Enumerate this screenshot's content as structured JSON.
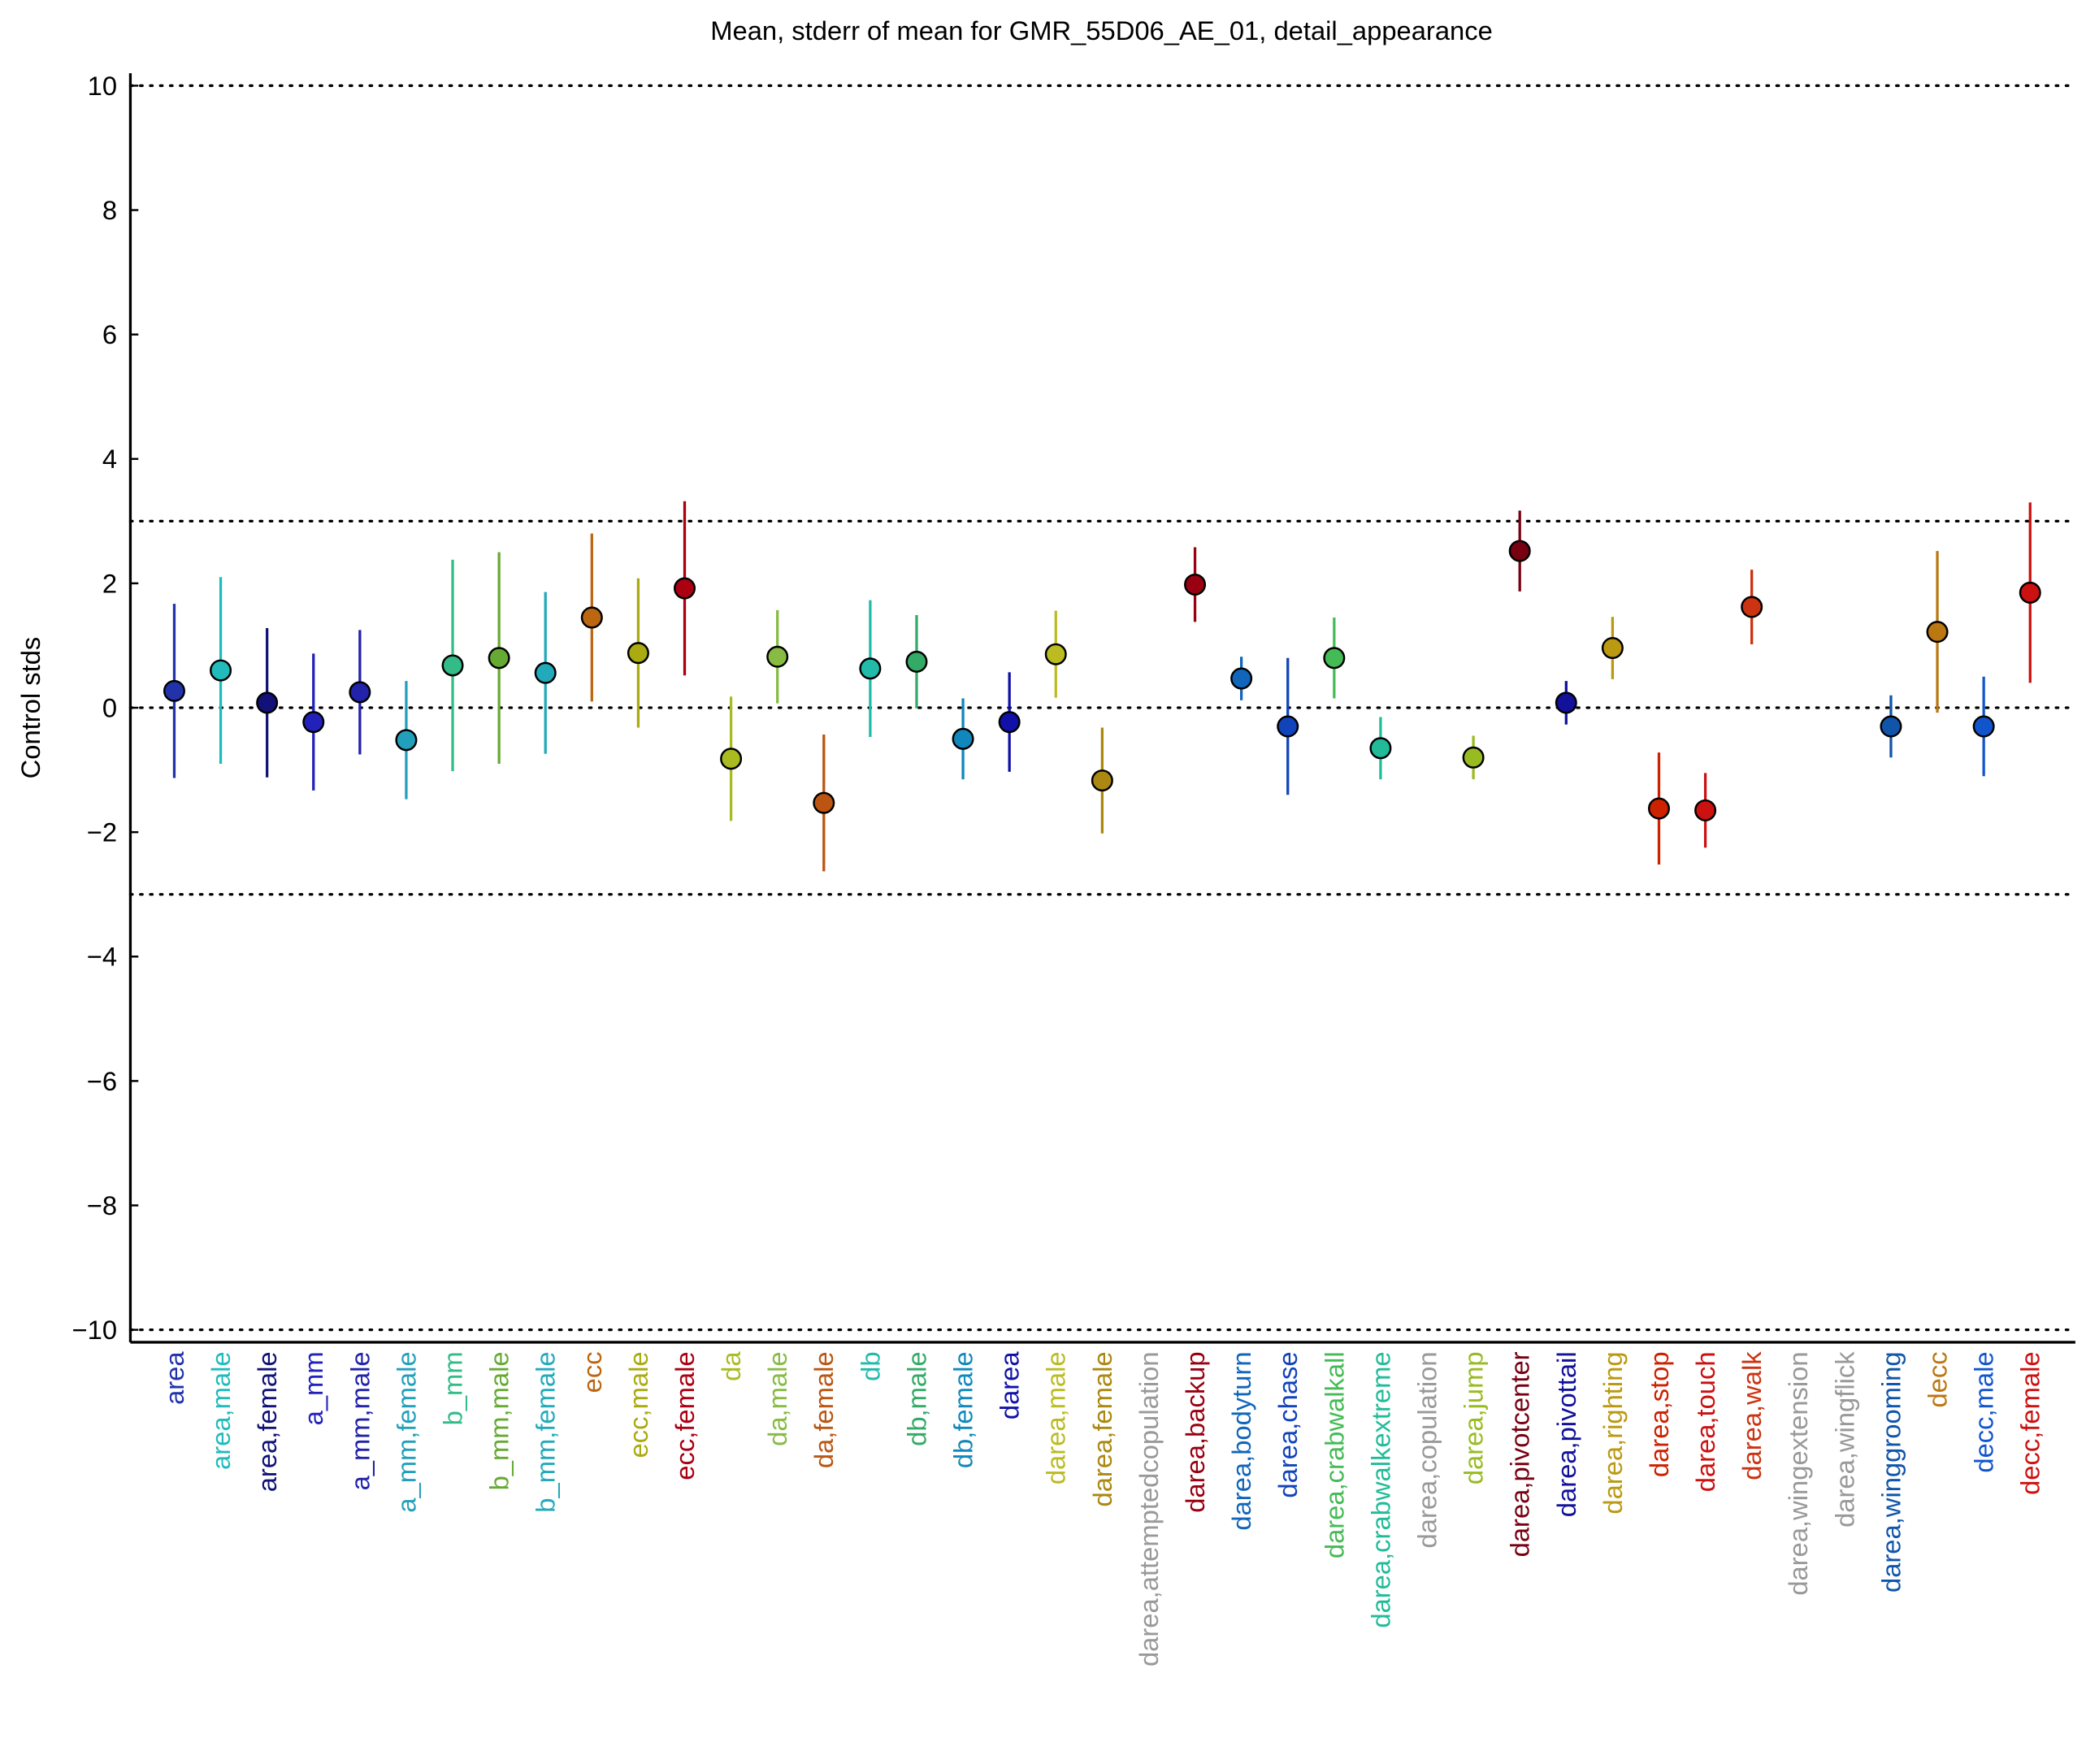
{
  "chart_data": {
    "type": "errorbar",
    "title": "Mean, stderr of mean for GMR_55D06_AE_01, detail_appearance",
    "ylabel": "Control stds",
    "categories": [
      "area",
      "area,male",
      "area,female",
      "a_mm",
      "a_mm,male",
      "a_mm,female",
      "b_mm",
      "b_mm,male",
      "b_mm,female",
      "ecc",
      "ecc,male",
      "ecc,female",
      "da",
      "da,male",
      "da,female",
      "db",
      "db,male",
      "db,female",
      "darea",
      "darea,male",
      "darea,female",
      "darea,attemptedcopulation",
      "darea,backup",
      "darea,bodyturn",
      "darea,chase",
      "darea,crabwalkall",
      "darea,crabwalkextreme",
      "darea,copulation",
      "darea,jump",
      "darea,pivotcenter",
      "darea,pivottail",
      "darea,righting",
      "darea,stop",
      "darea,touch",
      "darea,walk",
      "darea,wingextension",
      "darea,wingflick",
      "darea,winggrooming",
      "decc",
      "decc,male",
      "decc,female"
    ],
    "values": [
      0.27,
      0.6,
      0.08,
      -0.23,
      0.25,
      -0.52,
      0.68,
      0.8,
      0.56,
      1.45,
      0.88,
      1.92,
      -0.82,
      0.82,
      -1.53,
      0.63,
      0.74,
      -0.5,
      -0.23,
      0.86,
      -1.17,
      null,
      1.98,
      0.47,
      -0.3,
      0.8,
      -0.65,
      null,
      -0.8,
      2.52,
      0.08,
      0.96,
      -1.62,
      -1.65,
      1.62,
      null,
      null,
      -0.3,
      1.22,
      -0.3,
      1.85
    ],
    "errors": [
      1.4,
      1.5,
      1.2,
      1.1,
      1.0,
      0.95,
      1.7,
      1.7,
      1.3,
      1.35,
      1.2,
      1.4,
      1.0,
      0.75,
      1.1,
      1.1,
      0.75,
      0.65,
      0.8,
      0.7,
      0.85,
      null,
      0.6,
      0.35,
      1.1,
      0.65,
      0.5,
      null,
      0.35,
      0.65,
      0.35,
      0.5,
      0.9,
      0.6,
      0.6,
      null,
      null,
      0.5,
      1.3,
      0.8,
      1.45
    ],
    "colors": [
      "#2233aa",
      "#22bbbb",
      "#111177",
      "#2222bb",
      "#2222aa",
      "#22a0bb",
      "#33bb88",
      "#66aa33",
      "#22aabb",
      "#bb6611",
      "#aaaa11",
      "#aa0011",
      "#aabb22",
      "#88bb44",
      "#bb5511",
      "#22bbaa",
      "#33aa66",
      "#1188bb",
      "#1111aa",
      "#bbbb22",
      "#aa8811",
      "#999999",
      "#990011",
      "#1166bb",
      "#1144bb",
      "#44bb55",
      "#22bb99",
      "#999999",
      "#99bb22",
      "#770011",
      "#111199",
      "#bb9911",
      "#cc2200",
      "#cc1111",
      "#cc3311",
      "#999999",
      "#999999",
      "#1155aa",
      "#bb7711",
      "#1155cc",
      "#cc1111"
    ],
    "ylim": [
      -10.2,
      10.2
    ],
    "yticks": [
      {
        "value": -10,
        "label": "−10"
      },
      {
        "value": -8,
        "label": "−8"
      },
      {
        "value": -6,
        "label": "−6"
      },
      {
        "value": -4,
        "label": "−4"
      },
      {
        "value": -2,
        "label": "−2"
      },
      0,
      2,
      4,
      6,
      8,
      10
    ],
    "hlines": [
      10,
      3,
      0,
      -3,
      -10
    ]
  }
}
